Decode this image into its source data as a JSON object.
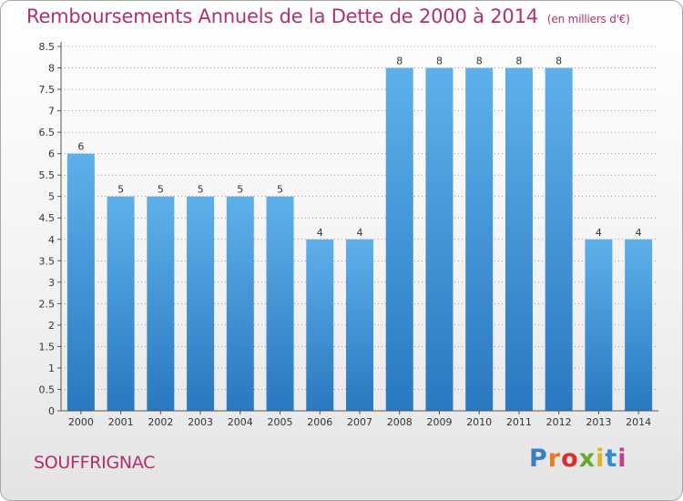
{
  "chart_data": {
    "type": "bar",
    "title": "Remboursements Annuels de la Dette de 2000 à 2014",
    "unit": "(en milliers d'€)",
    "categories": [
      "2000",
      "2001",
      "2002",
      "2003",
      "2004",
      "2005",
      "2006",
      "2007",
      "2008",
      "2009",
      "2010",
      "2011",
      "2012",
      "2013",
      "2014"
    ],
    "values": [
      6,
      5,
      5,
      5,
      5,
      5,
      4,
      4,
      8,
      8,
      8,
      8,
      8,
      4,
      4
    ],
    "data_labels": [
      "6",
      "5",
      "5",
      "5",
      "5",
      "5",
      "4",
      "4",
      "8",
      "8",
      "8",
      "8",
      "8",
      "4",
      "4"
    ],
    "ylim": [
      0,
      8.5
    ],
    "yticks": [
      "0",
      "0.5",
      "1",
      "1.5",
      "2",
      "2.5",
      "3",
      "3.5",
      "4",
      "4.5",
      "5",
      "5.5",
      "6",
      "6.5",
      "7",
      "7.5",
      "8",
      "8.5"
    ],
    "ytick_values": [
      0,
      0.5,
      1,
      1.5,
      2,
      2.5,
      3,
      3.5,
      4,
      4.5,
      5,
      5.5,
      6,
      6.5,
      7,
      7.5,
      8,
      8.5
    ],
    "grid": true,
    "bar_color": "#3a8fd6",
    "xlabel": "",
    "ylabel": ""
  },
  "commune": "SOUFFRIGNAC",
  "logo": "Proxiti",
  "colors": {
    "title": "#b0306f",
    "grid": "#b0306f"
  }
}
